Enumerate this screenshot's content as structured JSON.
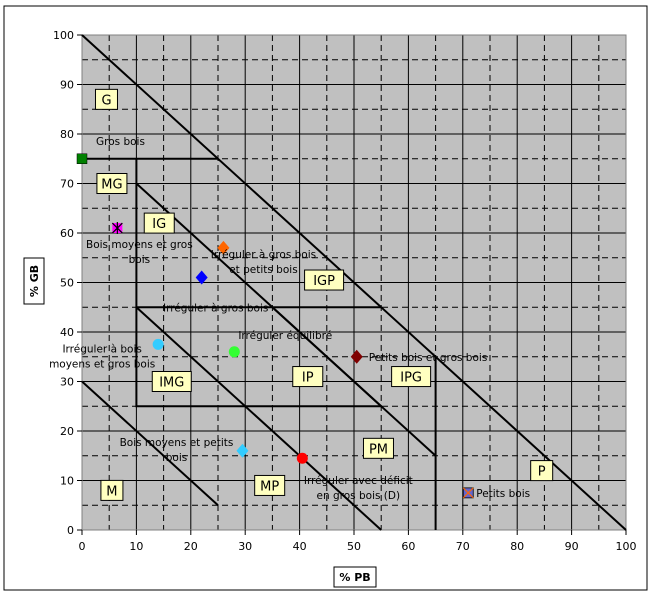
{
  "chart_data": {
    "type": "scatter",
    "title": "",
    "xlabel": "% PB",
    "ylabel": "% GB",
    "xlim": [
      0,
      100
    ],
    "ylim": [
      0,
      100
    ],
    "x_ticks": [
      0,
      10,
      20,
      30,
      40,
      50,
      60,
      70,
      80,
      90,
      100
    ],
    "y_ticks": [
      0,
      10,
      20,
      30,
      40,
      50,
      60,
      70,
      80,
      90,
      100
    ],
    "grid": "major solid and minor dashed gridlines every 5 units",
    "plot_background": "#c0c0c0",
    "boundaries": [
      {
        "points": [
          [
            0,
            100
          ],
          [
            100,
            0
          ]
        ]
      },
      {
        "points": [
          [
            0,
            30
          ],
          [
            25,
            5
          ]
        ]
      },
      {
        "points": [
          [
            0,
            75
          ],
          [
            25,
            75
          ]
        ]
      },
      {
        "points": [
          [
            10,
            75
          ],
          [
            10,
            25
          ],
          [
            55,
            25
          ]
        ]
      },
      {
        "points": [
          [
            10,
            70
          ],
          [
            55,
            25
          ]
        ]
      },
      {
        "points": [
          [
            10,
            45
          ],
          [
            55,
            45
          ]
        ]
      },
      {
        "points": [
          [
            10,
            45
          ],
          [
            55,
            0
          ]
        ]
      },
      {
        "points": [
          [
            65,
            35
          ],
          [
            65,
            0
          ]
        ]
      },
      {
        "points": [
          [
            65,
            15
          ],
          [
            35,
            45
          ]
        ]
      }
    ],
    "zones": [
      {
        "label": "G",
        "x": 4.5,
        "y": 87
      },
      {
        "label": "MG",
        "x": 5.5,
        "y": 70
      },
      {
        "label": "IG",
        "x": 14.2,
        "y": 62
      },
      {
        "label": "IGP",
        "x": 44.5,
        "y": 50.5
      },
      {
        "label": "IMG",
        "x": 16.5,
        "y": 30
      },
      {
        "label": "IP",
        "x": 41.5,
        "y": 31
      },
      {
        "label": "IPG",
        "x": 60.5,
        "y": 31
      },
      {
        "label": "PM",
        "x": 54.5,
        "y": 16.5
      },
      {
        "label": "MP",
        "x": 34.5,
        "y": 9
      },
      {
        "label": "M",
        "x": 5.5,
        "y": 8
      },
      {
        "label": "P",
        "x": 84.5,
        "y": 12
      }
    ],
    "series": [
      {
        "name": "Gros bois",
        "x": 0,
        "y": 75,
        "color": "#008000",
        "marker": "square",
        "annotation": [
          "Gros bois"
        ]
      },
      {
        "name": "Bois moyens et gros bois",
        "x": 6.5,
        "y": 61,
        "color": "#ff00ff",
        "marker": "star",
        "annotation": [
          "Bois moyens et gros",
          "bois"
        ]
      },
      {
        "name": "Irréguler à gros bois et petits bois",
        "x": 26,
        "y": 57,
        "color": "#ff6600",
        "marker": "diamond",
        "annotation": [
          "Irréguler à gros bois",
          "et petits bois"
        ]
      },
      {
        "name": "Irréguler à gros bois",
        "x": 22,
        "y": 51,
        "color": "#0000ff",
        "marker": "diamond",
        "annotation": [
          "Irréguler à gros bois"
        ]
      },
      {
        "name": "Irréguler à bois moyens et gros bois",
        "x": 14,
        "y": 37.5,
        "color": "#33ccff",
        "marker": "circle",
        "annotation": [
          "Irréguler à bois",
          "moyens et gros bois"
        ]
      },
      {
        "name": "Irréguler équilibré",
        "x": 28,
        "y": 36,
        "color": "#33ff33",
        "marker": "circle",
        "annotation": [
          "Irréguler équilibré"
        ]
      },
      {
        "name": "Petits bois et gros bois",
        "x": 50.5,
        "y": 35,
        "color": "#800000",
        "marker": "diamond",
        "annotation": [
          "Petits bois et gros bois"
        ]
      },
      {
        "name": "Bois moyens et petits bois",
        "x": 29.5,
        "y": 16,
        "color": "#33ccff",
        "marker": "diamond",
        "annotation": [
          "Bois moyens et petits",
          "bois"
        ]
      },
      {
        "name": "Irréguler avec déficit en gros bois (D)",
        "x": 40.5,
        "y": 14.5,
        "color": "#ff0000",
        "marker": "circle",
        "annotation": [
          "Irréguler avec déficit",
          "en gros bois (D)"
        ]
      },
      {
        "name": "Petits bois",
        "x": 71,
        "y": 7.5,
        "color": "#6666cc",
        "marker": "crossed-square",
        "annotation": [
          "Petits bois"
        ]
      }
    ]
  }
}
